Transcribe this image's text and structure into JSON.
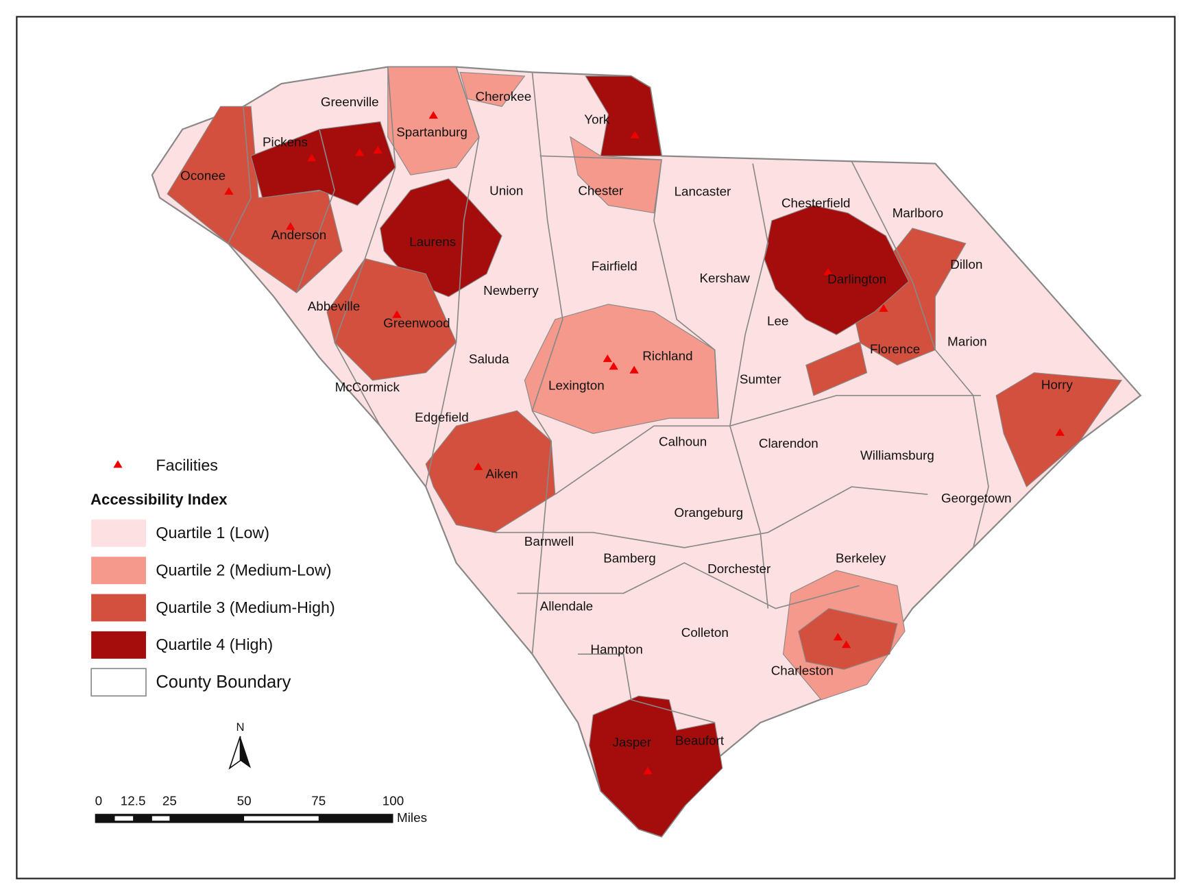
{
  "counties": [
    "Greenville",
    "Cherokee",
    "York",
    "Pickens",
    "Spartanburg",
    "Oconee",
    "Union",
    "Chester",
    "Lancaster",
    "Chesterfield",
    "Marlboro",
    "Anderson",
    "Laurens",
    "Fairfield",
    "Kershaw",
    "Darlington",
    "Dillon",
    "Newberry",
    "Abbeville",
    "Greenwood",
    "Lee",
    "Marion",
    "Florence",
    "Richland",
    "Saluda",
    "Sumter",
    "Lexington",
    "Horry",
    "McCormick",
    "Edgefield",
    "Calhoun",
    "Clarendon",
    "Williamsburg",
    "Aiken",
    "Georgetown",
    "Orangeburg",
    "Barnwell",
    "Bamberg",
    "Berkeley",
    "Dorchester",
    "Allendale",
    "Colleton",
    "Hampton",
    "Charleston",
    "Jasper",
    "Beaufort"
  ],
  "legend": {
    "facilities": "Facilities",
    "title": "Accessibility Index",
    "classes": [
      "Quartile 1 (Low)",
      "Quartile 2 (Medium-Low)",
      "Quartile 3 (Medium-High)",
      "Quartile 4 (High)"
    ],
    "colors": [
      "#fde0e1",
      "#f4998b",
      "#d4503e",
      "#a50d0d"
    ],
    "boundary": "County Boundary"
  },
  "north": "N",
  "scale_bar": {
    "labels": [
      "0",
      "12.5",
      "25",
      "50",
      "75",
      "100"
    ],
    "unit": "Miles"
  }
}
